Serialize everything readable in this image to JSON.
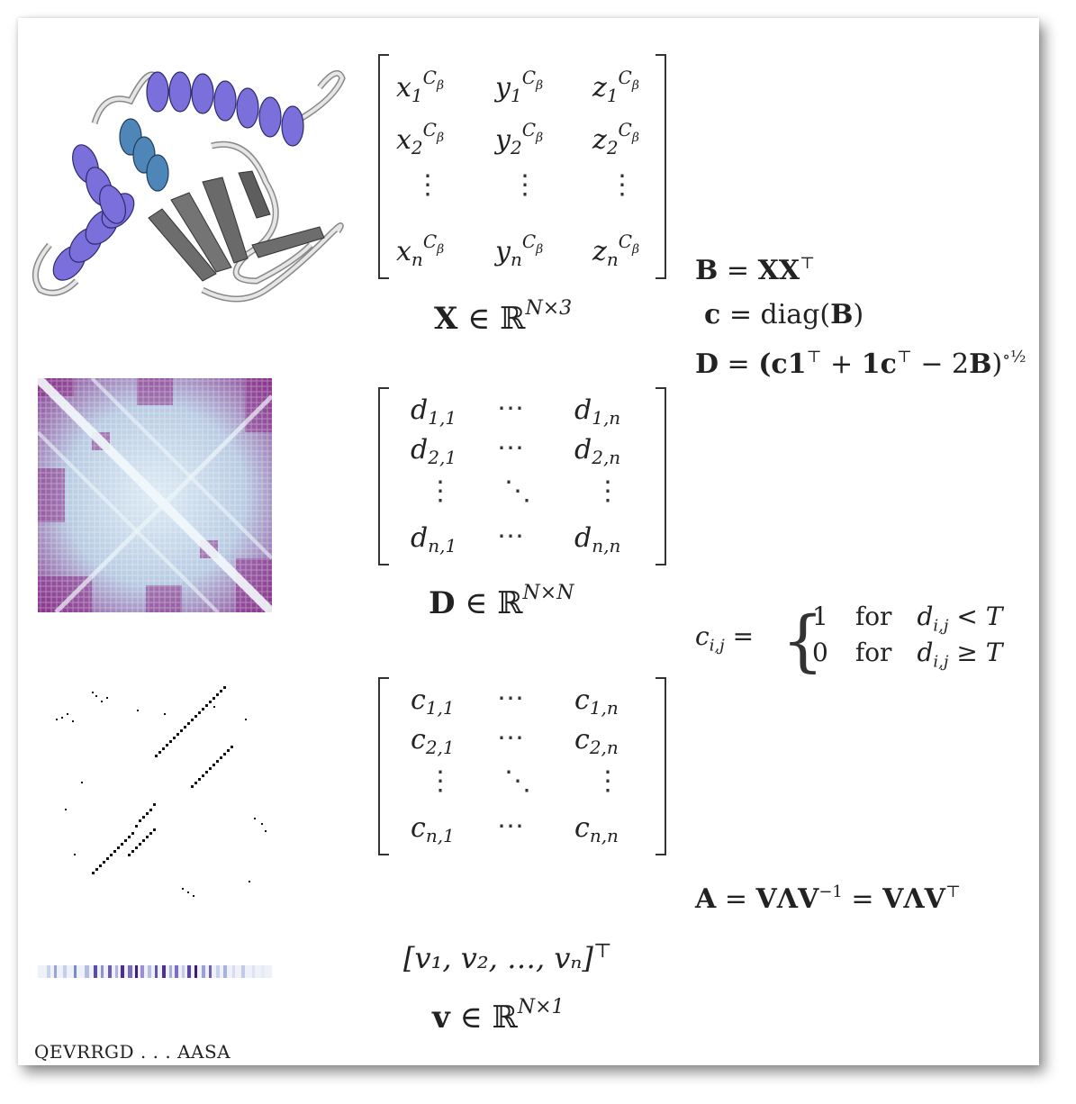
{
  "matrix_x": {
    "rows": [
      [
        "x",
        "1",
        "y",
        "1",
        "z",
        "1"
      ],
      [
        "x",
        "2",
        "y",
        "2",
        "z",
        "2"
      ],
      [
        "x",
        "n",
        "y",
        "n",
        "z",
        "n"
      ]
    ],
    "superscript": "C",
    "superscript_sub": "β",
    "dots": "⋮"
  },
  "caption_x": {
    "symbol": "X",
    "rel": " ∈ ℝ",
    "dims": "N×3"
  },
  "matrix_d": {
    "cells": [
      "d",
      "1,1",
      "⋯",
      "d",
      "1,n",
      "d",
      "2,1",
      "⋯",
      "d",
      "2,n",
      "d",
      "n,1",
      "⋯",
      "d",
      "n,n"
    ],
    "vdots": "⋮",
    "ddots": "⋱"
  },
  "caption_d": {
    "symbol": "D",
    "rel": " ∈ ℝ",
    "dims": "N×N"
  },
  "matrix_c": {
    "cells": [
      "c",
      "1,1",
      "⋯",
      "c",
      "1,n",
      "c",
      "2,1",
      "⋯",
      "c",
      "2,n",
      "c",
      "n,1",
      "⋯",
      "c",
      "n,n"
    ],
    "vdots": "⋮",
    "ddots": "⋱"
  },
  "vector_v": {
    "text": "[v₁, v₂, …, vₙ]",
    "transpose": "⊤"
  },
  "caption_v": {
    "symbol": "v",
    "rel": " ∈ ℝ",
    "dims": "N×1"
  },
  "equations": {
    "b_eq": {
      "lhs": "B",
      "eq": " = ",
      "rhs": "XX",
      "sup": "⊤"
    },
    "c_eq": {
      "lhs": "c",
      "eq": " = ",
      "fn": "diag(",
      "arg": "B",
      "close": ")"
    },
    "d_eq": {
      "lhs": "D",
      "eq": " = ",
      "rhs": "(c1",
      "t1": "⊤",
      "plus": " + ",
      "rhs2": "1c",
      "t2": "⊤",
      "minus": " − 2",
      "b": "B",
      "close": ")",
      "power": "∘½"
    },
    "contact": {
      "lhs": "c",
      "lhs_sub": "i,j",
      "eq": " = ",
      "val1": "1",
      "val2": "0",
      "for": "for",
      "cond_var": "d",
      "cond_sub": "i,j",
      "op1": " < T",
      "op2": " ≥ T"
    },
    "a_eq": {
      "lhs": "A",
      "eq": " = ",
      "rhs1": "VΛV",
      "inv": "−1",
      "eq2": " = ",
      "rhs2": "VΛV",
      "t": "⊤"
    }
  },
  "sequence": "QEVRRGD . . . AASA",
  "colors": {
    "helix": "#7b6fdc",
    "helix_light": "#9a90ee",
    "helix_blue": "#4f86b8",
    "sheet": "#6d6d6d",
    "coil": "#d8d8d8",
    "dist_dark": "#7d1f7c",
    "dist_light": "#e4f1f8"
  }
}
